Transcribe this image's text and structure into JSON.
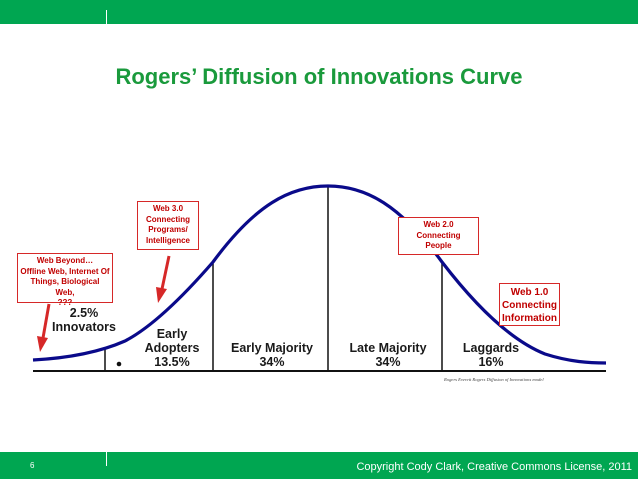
{
  "title": "Rogers’ Diffusion of Innovations Curve",
  "segments": [
    {
      "name": "2.5%",
      "name2": "Innovators"
    },
    {
      "name": "Early",
      "name2": "Adopters",
      "pct": "13.5%"
    },
    {
      "name": "Early Majority",
      "pct": "34%"
    },
    {
      "name": "Late Majority",
      "pct": "34%"
    },
    {
      "name": "Laggards",
      "pct": "16%"
    }
  ],
  "callouts": {
    "web_beyond": [
      "Web Beyond…",
      "Offline Web, Internet Of",
      "Things, Biological Web,",
      "???"
    ],
    "web3": [
      "Web 3.0",
      "Connecting",
      "Programs/",
      "Intelligence"
    ],
    "web2": [
      "Web 2.0",
      "Connecting",
      "People"
    ],
    "web1": [
      "Web 1.0",
      "Connecting",
      "Information"
    ]
  },
  "citation": "Rogers Everett Rogers Diffusion of Innovations model",
  "footer": {
    "page_number": "6",
    "copyright": "Copyright Cody Clark, Creative Commons License, 2011"
  },
  "colors": {
    "brand_green": "#00a651",
    "title_green": "#1a9a3c",
    "callout_red": "#d62828",
    "curve": "#0a0a8a"
  }
}
